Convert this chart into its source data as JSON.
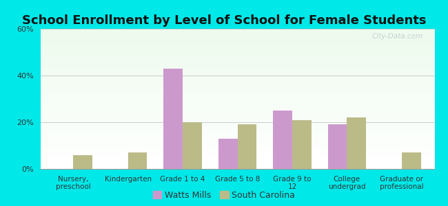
{
  "title": "School Enrollment by Level of School for Female Students",
  "categories": [
    "Nursery,\npreschool",
    "Kindergarten",
    "Grade 1 to 4",
    "Grade 5 to 8",
    "Grade 9 to\n12",
    "College\nundergrad",
    "Graduate or\nprofessional"
  ],
  "watts_mills": [
    0,
    0,
    43,
    13,
    25,
    19,
    0
  ],
  "south_carolina": [
    6,
    7,
    20,
    19,
    21,
    22,
    7
  ],
  "watts_mills_color": "#cc99cc",
  "south_carolina_color": "#bbbb88",
  "background_outer": "#00e8e8",
  "ylim": [
    0,
    60
  ],
  "yticks": [
    0,
    20,
    40,
    60
  ],
  "ytick_labels": [
    "0%",
    "20%",
    "40%",
    "60%"
  ],
  "bar_width": 0.35,
  "title_fontsize": 13,
  "legend_labels": [
    "Watts Mills",
    "South Carolina"
  ],
  "watermark": "City-Data.com"
}
